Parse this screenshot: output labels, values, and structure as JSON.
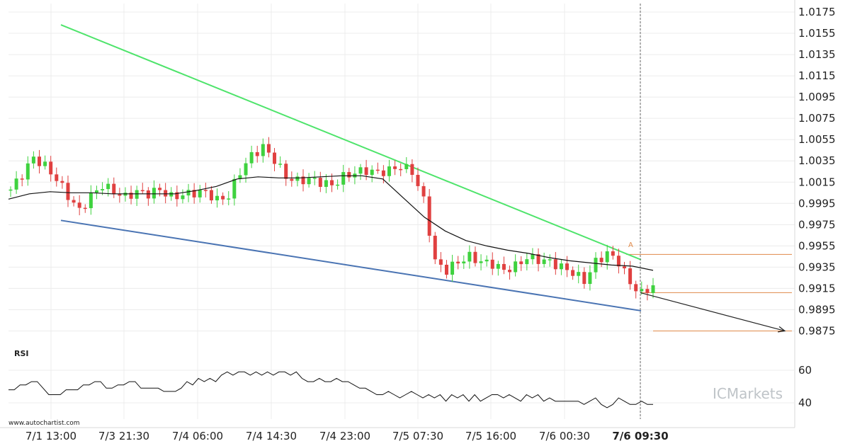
{
  "chart_data": {
    "type": "candlestick",
    "y_axis_ticks": [
      "1.0175",
      "1.0155",
      "1.0135",
      "1.0115",
      "1.0095",
      "1.0075",
      "1.0055",
      "1.0035",
      "1.0015",
      "0.9995",
      "0.9975",
      "0.9955",
      "0.9935",
      "0.9915",
      "0.9895",
      "0.9875"
    ],
    "ylim": [
      0.986,
      1.0183
    ],
    "x_axis_ticks": [
      "7/1 13:00",
      "7/3 21:30",
      "7/4 06:00",
      "7/4 14:30",
      "7/4 23:00",
      "7/5 07:30",
      "7/5 16:00",
      "7/6 00:30",
      "7/6 09:30"
    ],
    "x_axis_current": "7/6 09:30",
    "price_close_path": [
      1.0008,
      1.0022,
      1.0038,
      1.003,
      1.0018,
      1.0002,
      0.9988,
      1.0002,
      1.0012,
      1.0006,
      1.0001,
      1.0006,
      1.0004,
      1.0008,
      1.0001,
      1.0003,
      1.0005,
      1.0006,
      0.9998,
      1.0002,
      1.0025,
      1.004,
      1.0048,
      1.0036,
      1.002,
      1.0016,
      1.0018,
      1.0015,
      1.0012,
      1.002,
      1.0024,
      1.0026,
      1.0024,
      1.0026,
      1.003,
      1.0025,
      0.9998,
      0.994,
      0.9932,
      0.994,
      0.9945,
      0.994,
      0.9938,
      0.9932,
      0.9936,
      0.9944,
      0.9942,
      0.994,
      0.9935,
      0.993,
      0.9922,
      0.994,
      0.9948,
      0.994,
      0.992,
      0.991,
      0.9918
    ],
    "moving_average": [
      0.9999,
      1.0004,
      1.0006,
      1.0005,
      1.0005,
      1.0004,
      1.0004,
      1.0004,
      1.0004,
      1.0007,
      1.0011,
      1.0018,
      1.002,
      1.0019,
      1.0019,
      1.002,
      1.0021,
      1.0021,
      1.0018,
      1.0,
      0.9982,
      0.9969,
      0.996,
      0.9955,
      0.9951,
      0.9948,
      0.9944,
      0.9941,
      0.9939,
      0.9937,
      0.9936,
      0.9932
    ],
    "resistance_line": {
      "from": {
        "x": "7/1 13:00",
        "y": 1.0163
      },
      "to": {
        "x": "7/6 09:30",
        "y": 0.9942
      }
    },
    "support_line": {
      "from": {
        "x": "7/1 13:00",
        "y": 0.9979
      },
      "to": {
        "x": "7/6 09:30",
        "y": 0.9894
      }
    },
    "levels": [
      0.9947,
      0.9911,
      0.9875
    ],
    "forecast_target": 0.9875,
    "marker_label": "A",
    "rsi": {
      "label": "RSI",
      "ticks": [
        "60",
        "40"
      ],
      "ylim": [
        30,
        70
      ],
      "values": [
        48,
        48,
        51,
        51,
        53,
        53,
        49,
        45,
        45,
        45,
        48,
        48,
        48,
        51,
        51,
        53,
        53,
        49,
        49,
        51,
        51,
        53,
        53,
        49,
        49,
        49,
        49,
        47,
        47,
        47,
        49,
        53,
        51,
        55,
        53,
        55,
        53,
        57,
        59,
        57,
        59,
        59,
        57,
        59,
        57,
        59,
        57,
        59,
        59,
        57,
        59,
        55,
        53,
        53,
        55,
        53,
        53,
        55,
        53,
        53,
        51,
        49,
        49,
        47,
        45,
        45,
        47,
        45,
        43,
        45,
        47,
        45,
        43,
        45,
        43,
        45,
        41,
        45,
        43,
        45,
        41,
        45,
        41,
        43,
        45,
        45,
        43,
        45,
        43,
        41,
        45,
        43,
        45,
        41,
        43,
        41,
        41,
        41,
        41,
        41,
        39,
        41,
        43,
        39,
        37,
        39,
        43,
        41,
        39,
        39,
        41,
        39,
        39
      ]
    },
    "colors": {
      "up": "#3fd23f",
      "down": "#e04040",
      "moving_average": "#111111",
      "resistance": "#4ee46b",
      "support": "#4a74b3",
      "levels": "#e08a4a",
      "forecast": "#222222",
      "grid": "#ececec",
      "current_time": "#666666",
      "rsi_line": "#111111",
      "axis_text": "#222222"
    }
  },
  "watermark": {
    "source": "www.autochartist.com",
    "brand": "ICMarkets"
  }
}
